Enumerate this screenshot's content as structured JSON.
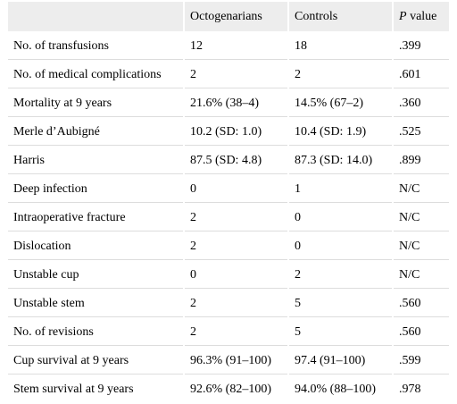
{
  "table": {
    "header": {
      "col0": "",
      "col1": "Octogenarians",
      "col2": "Controls",
      "col3_italic": "P",
      "col3_rest": " value"
    },
    "rows": [
      {
        "label": "No. of transfusions",
        "octogenarians": "12",
        "controls": "18",
        "p": ".399"
      },
      {
        "label": "No. of medical complications",
        "octogenarians": "2",
        "controls": "2",
        "p": ".601"
      },
      {
        "label": "Mortality at 9 years",
        "octogenarians": "21.6% (38–4)",
        "controls": "14.5% (67–2)",
        "p": ".360"
      },
      {
        "label": "Merle d’Aubigné",
        "octogenarians": "10.2 (SD: 1.0)",
        "controls": "10.4 (SD: 1.9)",
        "p": ".525"
      },
      {
        "label": "Harris",
        "octogenarians": "87.5 (SD: 4.8)",
        "controls": "87.3 (SD: 14.0)",
        "p": ".899"
      },
      {
        "label": "Deep infection",
        "octogenarians": "0",
        "controls": "1",
        "p": "N/C"
      },
      {
        "label": "Intraoperative fracture",
        "octogenarians": "2",
        "controls": "0",
        "p": "N/C"
      },
      {
        "label": "Dislocation",
        "octogenarians": "2",
        "controls": "0",
        "p": "N/C"
      },
      {
        "label": "Unstable cup",
        "octogenarians": "0",
        "controls": "2",
        "p": "N/C"
      },
      {
        "label": "Unstable stem",
        "octogenarians": "2",
        "controls": "5",
        "p": ".560"
      },
      {
        "label": "No. of revisions",
        "octogenarians": "2",
        "controls": "5",
        "p": ".560"
      },
      {
        "label": "Cup survival at 9 years",
        "octogenarians": "96.3% (91–100)",
        "controls": "97.4 (91–100)",
        "p": ".599"
      },
      {
        "label": "Stem survival at 9 years",
        "octogenarians": "92.6% (82–100)",
        "controls": "94.0% (88–100)",
        "p": ".978"
      }
    ]
  }
}
